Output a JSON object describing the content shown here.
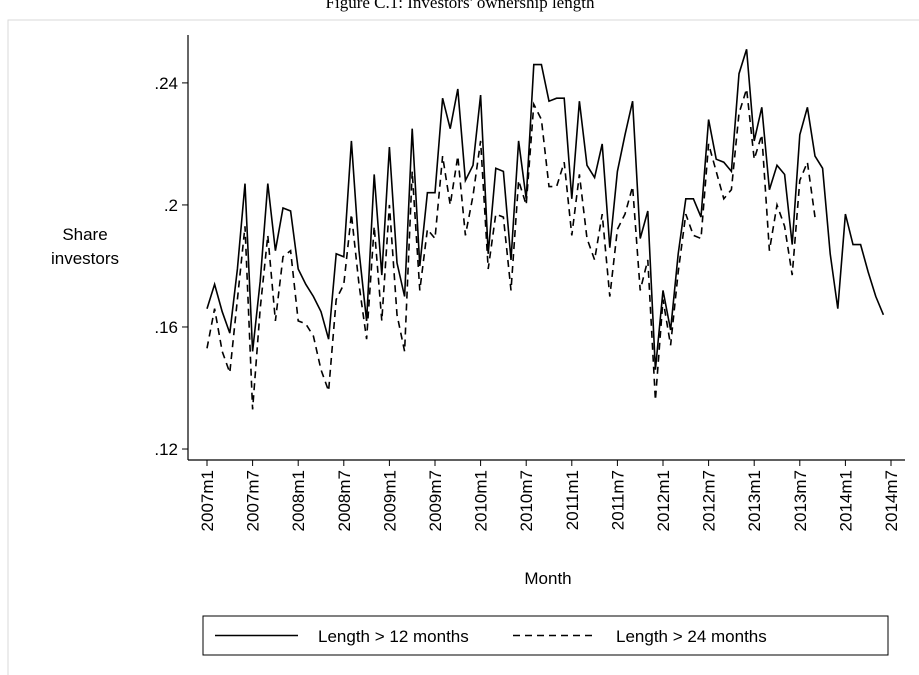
{
  "chart_data": {
    "type": "line",
    "title": "Figure C.1: Investors' ownership length",
    "ylabel": [
      "Share",
      "investors"
    ],
    "xlabel": "Month",
    "categories": [
      "2007m1",
      null,
      null,
      null,
      null,
      null,
      "2007m7",
      null,
      null,
      null,
      null,
      null,
      "2008m1",
      null,
      null,
      null,
      null,
      null,
      "2008m7",
      null,
      null,
      null,
      null,
      null,
      "2009m1",
      null,
      null,
      null,
      null,
      null,
      "2009m7",
      null,
      null,
      null,
      null,
      null,
      "2010m1",
      null,
      null,
      null,
      null,
      null,
      "2010m7",
      null,
      null,
      null,
      null,
      null,
      "2011m1",
      null,
      null,
      null,
      null,
      null,
      "2011m7",
      null,
      null,
      null,
      null,
      null,
      "2012m1",
      null,
      null,
      null,
      null,
      null,
      "2012m7",
      null,
      null,
      null,
      null,
      null,
      "2013m1",
      null,
      null,
      null,
      null,
      null,
      "2013m7",
      null,
      null,
      null,
      null,
      null,
      "2014m1",
      null,
      null,
      null,
      null,
      null,
      "2014m7"
    ],
    "series": [
      {
        "name": "Length > 12 months",
        "color": "#000000",
        "dash": "solid",
        "values": [
          0.166,
          0.174,
          0.165,
          0.158,
          0.179,
          0.207,
          0.152,
          0.175,
          0.207,
          0.185,
          0.199,
          0.198,
          0.179,
          0.174,
          0.17,
          0.165,
          0.156,
          0.184,
          0.183,
          0.221,
          0.185,
          0.162,
          0.21,
          0.177,
          0.219,
          0.181,
          0.17,
          0.225,
          0.18,
          0.204,
          0.204,
          0.235,
          0.225,
          0.238,
          0.208,
          0.213,
          0.236,
          0.184,
          0.212,
          0.211,
          0.182,
          0.221,
          0.202,
          0.246,
          0.246,
          0.234,
          0.235,
          0.235,
          0.202,
          0.234,
          0.213,
          0.209,
          0.22,
          0.186,
          0.211,
          0.223,
          0.234,
          0.189,
          0.198,
          0.146,
          0.172,
          0.159,
          0.184,
          0.202,
          0.202,
          0.196,
          0.228,
          0.215,
          0.214,
          0.211,
          0.243,
          0.251,
          0.221,
          0.232,
          0.205,
          0.213,
          0.21,
          0.187,
          0.223,
          0.232,
          0.216,
          0.212,
          0.184,
          0.166,
          0.197,
          0.187,
          0.187,
          0.178,
          0.17,
          0.164,
          null
        ]
      },
      {
        "name": "Length > 24 months",
        "color": "#000000",
        "dash": "dashed",
        "values": [
          0.153,
          0.166,
          0.152,
          0.145,
          0.169,
          0.193,
          0.133,
          0.166,
          0.19,
          0.162,
          0.183,
          0.185,
          0.162,
          0.161,
          0.157,
          0.146,
          0.139,
          0.169,
          0.174,
          0.197,
          0.174,
          0.156,
          0.193,
          0.162,
          0.2,
          0.164,
          0.152,
          0.211,
          0.172,
          0.192,
          0.189,
          0.216,
          0.2,
          0.216,
          0.19,
          0.203,
          0.221,
          0.179,
          0.197,
          0.196,
          0.172,
          0.208,
          0.2,
          0.233,
          0.228,
          0.206,
          0.206,
          0.214,
          0.19,
          0.21,
          0.189,
          0.182,
          0.197,
          0.17,
          0.192,
          0.197,
          0.206,
          0.172,
          0.182,
          0.136,
          0.169,
          0.154,
          0.178,
          0.197,
          0.19,
          0.189,
          0.22,
          0.211,
          0.202,
          0.205,
          0.23,
          0.238,
          0.215,
          0.223,
          0.185,
          0.2,
          0.193,
          0.177,
          0.208,
          0.214,
          0.196,
          null,
          null,
          null,
          null,
          null,
          null,
          null,
          null,
          null,
          null
        ]
      }
    ],
    "ylim": [
      0.1164,
      0.2557
    ],
    "yticks": [
      {
        "value": 0.12,
        "label": ".12"
      },
      {
        "value": 0.16,
        "label": ".16"
      },
      {
        "value": 0.2,
        "label": ".2"
      },
      {
        "value": 0.24,
        "label": ".24"
      }
    ],
    "grid": false,
    "legend_position": "bottom"
  }
}
